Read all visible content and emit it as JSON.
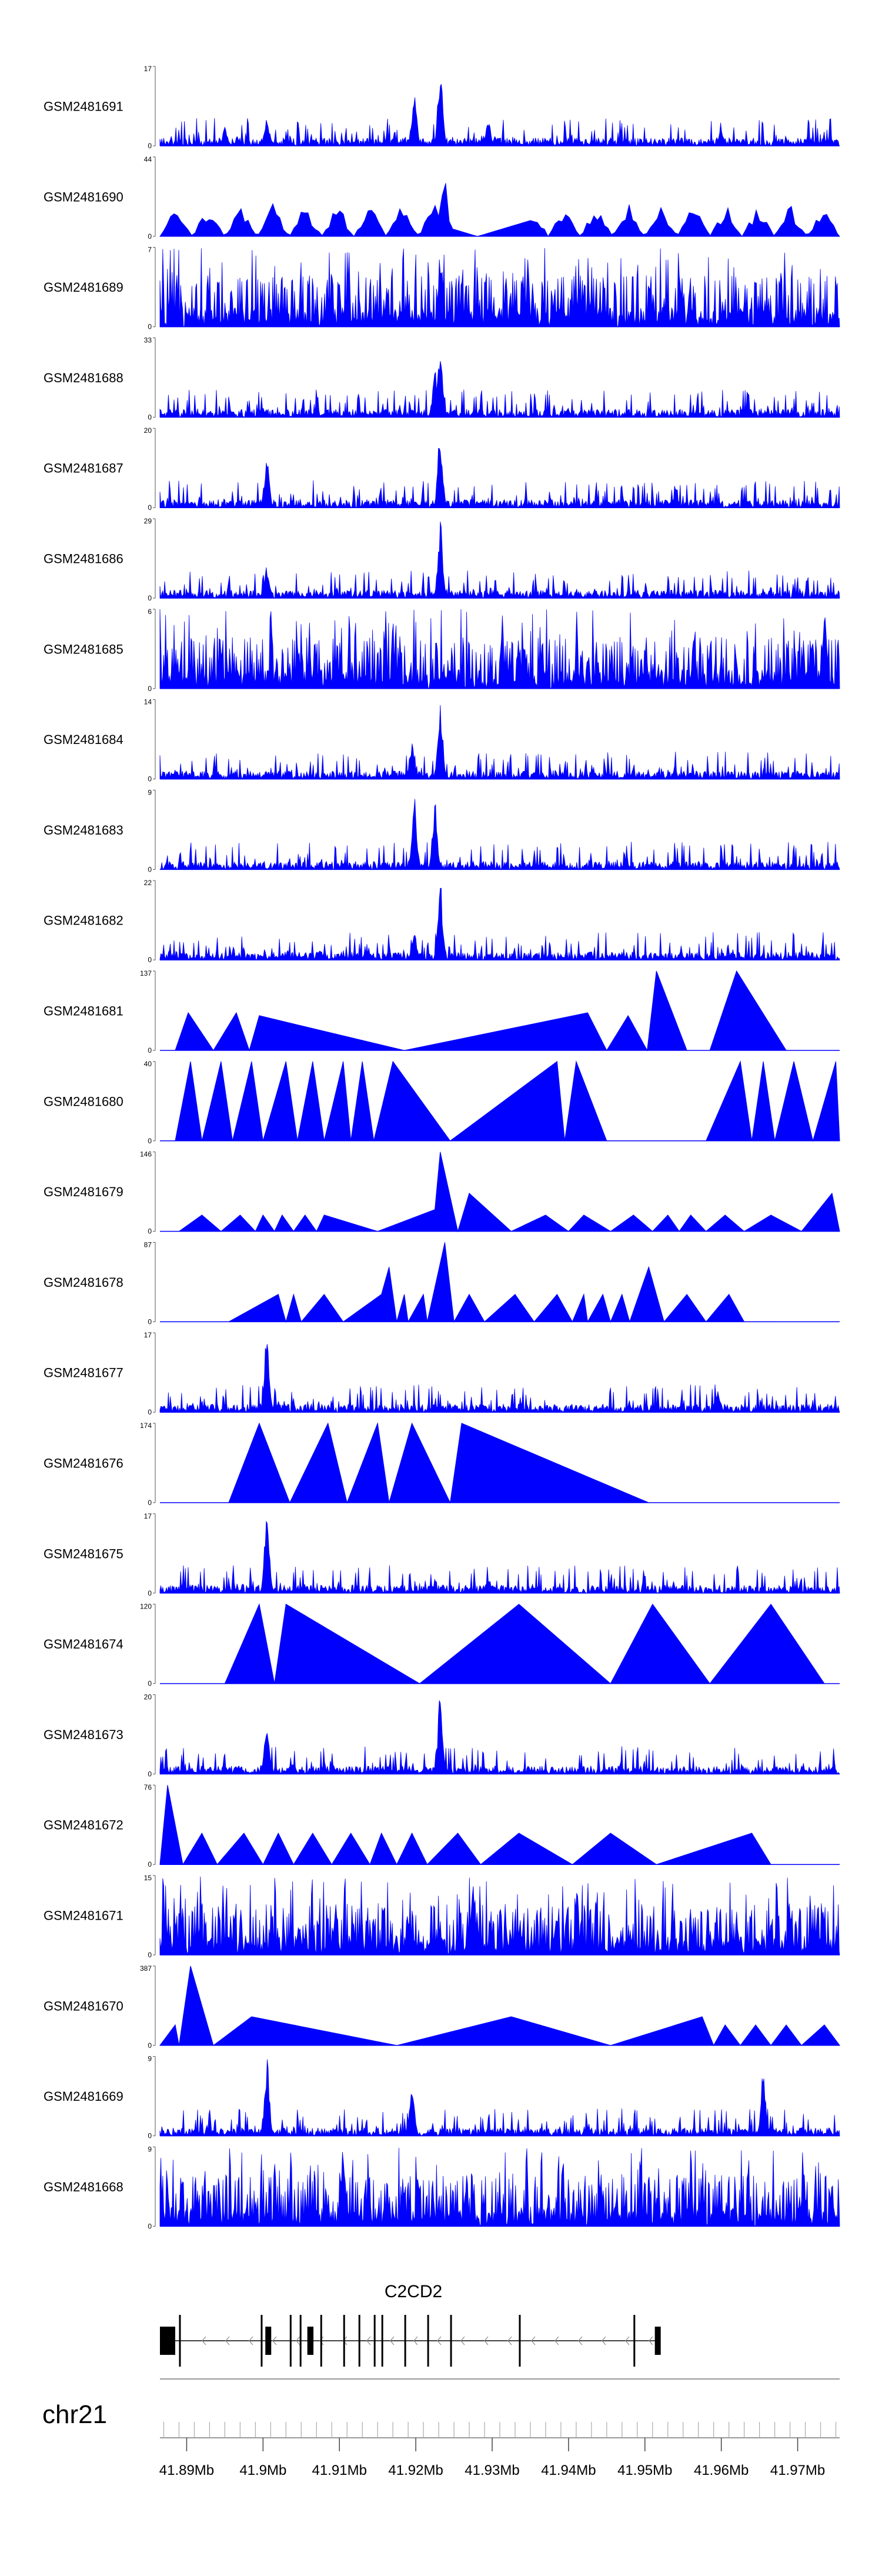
{
  "chart_data": {
    "type": "area",
    "chromosome": "chr21",
    "region_mb": [
      41.8865,
      41.9755
    ],
    "fill_color": "#0000ff",
    "gene": {
      "name": "C2CD2",
      "strand": "-"
    },
    "axis_ticks": [
      "41.89Mb",
      "41.9Mb",
      "41.91Mb",
      "41.92Mb",
      "41.93Mb",
      "41.94Mb",
      "41.95Mb",
      "41.96Mb",
      "41.97Mb"
    ],
    "axis_tick_values": [
      41.89,
      41.9,
      41.91,
      41.92,
      41.93,
      41.94,
      41.95,
      41.96,
      41.97
    ],
    "tracks": [
      {
        "label": "GSM2481691",
        "ymax": 17,
        "ymin": 0,
        "style": "dense",
        "peaks": [
          [
            41.9005,
            6
          ],
          [
            41.9198,
            12
          ],
          [
            41.9232,
            17
          ],
          [
            41.9295,
            6
          ],
          [
            41.895,
            4
          ],
          [
            41.96,
            4
          ]
        ]
      },
      {
        "label": "GSM2481690",
        "ymax": 44,
        "ymin": 0,
        "style": "sparse-triangles",
        "peaks": [
          [
            41.9215,
            15
          ],
          [
            41.9238,
            44
          ],
          [
            41.9105,
            20
          ]
        ]
      },
      {
        "label": "GSM2481689",
        "ymax": 7,
        "ymin": 0,
        "style": "dense-noisy",
        "peaks": [
          [
            41.9232,
            7
          ]
        ]
      },
      {
        "label": "GSM2481688",
        "ymax": 33,
        "ymin": 0,
        "style": "dense",
        "peaks": [
          [
            41.9232,
            33
          ],
          [
            41.9225,
            20
          ],
          [
            41.9,
            4
          ]
        ]
      },
      {
        "label": "GSM2481687",
        "ymax": 20,
        "ymin": 0,
        "style": "dense",
        "peaks": [
          [
            41.9232,
            20
          ],
          [
            41.9005,
            14
          ]
        ]
      },
      {
        "label": "GSM2481686",
        "ymax": 29,
        "ymin": 0,
        "style": "dense",
        "peaks": [
          [
            41.9232,
            29
          ],
          [
            41.9005,
            12
          ]
        ]
      },
      {
        "label": "GSM2481685",
        "ymax": 6,
        "ymin": 0,
        "style": "dense-noisy",
        "peaks": [
          [
            41.9735,
            6
          ]
        ]
      },
      {
        "label": "GSM2481684",
        "ymax": 14,
        "ymin": 0,
        "style": "dense",
        "peaks": [
          [
            41.9232,
            14
          ],
          [
            41.9195,
            7
          ]
        ]
      },
      {
        "label": "GSM2481683",
        "ymax": 9,
        "ymin": 0,
        "style": "dense",
        "peaks": [
          [
            41.9198,
            9
          ],
          [
            41.9225,
            8
          ]
        ]
      },
      {
        "label": "GSM2481682",
        "ymax": 22,
        "ymin": 0,
        "style": "dense",
        "peaks": [
          [
            41.9232,
            22
          ],
          [
            41.9198,
            8
          ]
        ]
      },
      {
        "label": "GSM2481681",
        "ymax": 137,
        "ymin": 0,
        "style": "big-triangles",
        "points": [
          [
            41.8885,
            0
          ],
          [
            41.8902,
            65
          ],
          [
            41.8935,
            0
          ],
          [
            41.8965,
            65
          ],
          [
            41.8982,
            0
          ],
          [
            41.8995,
            60
          ],
          [
            41.9185,
            0
          ],
          [
            41.9425,
            65
          ],
          [
            41.945,
            0
          ],
          [
            41.9478,
            60
          ],
          [
            41.9503,
            0
          ],
          [
            41.9515,
            137
          ],
          [
            41.9555,
            0
          ],
          [
            41.9585,
            0
          ],
          [
            41.962,
            137
          ],
          [
            41.9685,
            0
          ]
        ]
      },
      {
        "label": "GSM2481680",
        "ymax": 40,
        "ymin": 0,
        "style": "big-triangles",
        "points": [
          [
            41.8885,
            0
          ],
          [
            41.8905,
            40
          ],
          [
            41.892,
            0
          ],
          [
            41.8945,
            40
          ],
          [
            41.896,
            0
          ],
          [
            41.8985,
            40
          ],
          [
            41.9,
            0
          ],
          [
            41.903,
            40
          ],
          [
            41.9045,
            0
          ],
          [
            41.9065,
            40
          ],
          [
            41.908,
            0
          ],
          [
            41.9105,
            40
          ],
          [
            41.9115,
            0
          ],
          [
            41.913,
            40
          ],
          [
            41.9145,
            0
          ],
          [
            41.917,
            40
          ],
          [
            41.9245,
            0
          ],
          [
            41.9385,
            40
          ],
          [
            41.9395,
            0
          ],
          [
            41.941,
            40
          ],
          [
            41.945,
            0
          ],
          [
            41.958,
            0
          ],
          [
            41.9625,
            40
          ],
          [
            41.964,
            0
          ],
          [
            41.9655,
            40
          ],
          [
            41.967,
            0
          ],
          [
            41.9695,
            40
          ],
          [
            41.972,
            0
          ],
          [
            41.975,
            40
          ],
          [
            41.9755,
            0
          ]
        ]
      },
      {
        "label": "GSM2481679",
        "ymax": 146,
        "ymin": 0,
        "style": "big-triangles",
        "points": [
          [
            41.889,
            0
          ],
          [
            41.892,
            30
          ],
          [
            41.8945,
            0
          ],
          [
            41.897,
            30
          ],
          [
            41.899,
            0
          ],
          [
            41.9,
            30
          ],
          [
            41.9015,
            0
          ],
          [
            41.9025,
            30
          ],
          [
            41.904,
            0
          ],
          [
            41.9055,
            30
          ],
          [
            41.907,
            0
          ],
          [
            41.908,
            30
          ],
          [
            41.915,
            0
          ],
          [
            41.9225,
            40
          ],
          [
            41.9232,
            146
          ],
          [
            41.9255,
            0
          ],
          [
            41.927,
            70
          ],
          [
            41.9325,
            0
          ],
          [
            41.937,
            30
          ],
          [
            41.94,
            0
          ],
          [
            41.942,
            30
          ],
          [
            41.9455,
            0
          ],
          [
            41.9485,
            30
          ],
          [
            41.951,
            0
          ],
          [
            41.953,
            30
          ],
          [
            41.9545,
            0
          ],
          [
            41.956,
            30
          ],
          [
            41.958,
            0
          ],
          [
            41.9605,
            30
          ],
          [
            41.963,
            0
          ],
          [
            41.9665,
            30
          ],
          [
            41.9705,
            0
          ],
          [
            41.9745,
            70
          ],
          [
            41.9755,
            0
          ]
        ]
      },
      {
        "label": "GSM2481678",
        "ymax": 87,
        "ymin": 0,
        "style": "big-triangles",
        "points": [
          [
            41.8955,
            0
          ],
          [
            41.902,
            30
          ],
          [
            41.903,
            0
          ],
          [
            41.904,
            30
          ],
          [
            41.905,
            0
          ],
          [
            41.908,
            30
          ],
          [
            41.9105,
            0
          ],
          [
            41.9155,
            30
          ],
          [
            41.9165,
            60
          ],
          [
            41.9175,
            0
          ],
          [
            41.9185,
            30
          ],
          [
            41.919,
            0
          ],
          [
            41.921,
            30
          ],
          [
            41.9215,
            0
          ],
          [
            41.9238,
            87
          ],
          [
            41.925,
            0
          ],
          [
            41.927,
            30
          ],
          [
            41.929,
            0
          ],
          [
            41.933,
            30
          ],
          [
            41.9355,
            0
          ],
          [
            41.9385,
            30
          ],
          [
            41.9405,
            0
          ],
          [
            41.942,
            30
          ],
          [
            41.9425,
            0
          ],
          [
            41.9445,
            30
          ],
          [
            41.9455,
            0
          ],
          [
            41.947,
            30
          ],
          [
            41.948,
            0
          ],
          [
            41.9505,
            60
          ],
          [
            41.9525,
            0
          ],
          [
            41.9555,
            30
          ],
          [
            41.958,
            0
          ],
          [
            41.961,
            30
          ],
          [
            41.963,
            0
          ],
          [
            41.9675,
            0
          ]
        ]
      },
      {
        "label": "GSM2481677",
        "ymax": 17,
        "ymin": 0,
        "style": "dense",
        "peaks": [
          [
            41.9005,
            17
          ],
          [
            41.9595,
            5
          ]
        ]
      },
      {
        "label": "GSM2481676",
        "ymax": 174,
        "ymin": 0,
        "style": "big-triangles",
        "points": [
          [
            41.8955,
            0
          ],
          [
            41.8995,
            174
          ],
          [
            41.9035,
            0
          ],
          [
            41.9085,
            174
          ],
          [
            41.911,
            0
          ],
          [
            41.915,
            174
          ],
          [
            41.9165,
            0
          ],
          [
            41.9195,
            174
          ],
          [
            41.9245,
            0
          ],
          [
            41.926,
            174
          ],
          [
            41.9505,
            0
          ]
        ]
      },
      {
        "label": "GSM2481675",
        "ymax": 17,
        "ymin": 0,
        "style": "dense",
        "peaks": [
          [
            41.9005,
            17
          ],
          [
            41.9295,
            4
          ]
        ]
      },
      {
        "label": "GSM2481674",
        "ymax": 120,
        "ymin": 0,
        "style": "big-triangles",
        "points": [
          [
            41.895,
            0
          ],
          [
            41.8995,
            120
          ],
          [
            41.9015,
            0
          ],
          [
            41.903,
            120
          ],
          [
            41.9205,
            0
          ],
          [
            41.9335,
            120
          ],
          [
            41.9455,
            0
          ],
          [
            41.951,
            120
          ],
          [
            41.9585,
            0
          ],
          [
            41.9665,
            120
          ],
          [
            41.9735,
            0
          ]
        ]
      },
      {
        "label": "GSM2481673",
        "ymax": 20,
        "ymin": 0,
        "style": "dense",
        "peaks": [
          [
            41.9232,
            20
          ],
          [
            41.9005,
            13
          ]
        ]
      },
      {
        "label": "GSM2481672",
        "ymax": 76,
        "ymin": 0,
        "style": "big-triangles",
        "points": [
          [
            41.8865,
            0
          ],
          [
            41.8875,
            76
          ],
          [
            41.8895,
            0
          ],
          [
            41.892,
            30
          ],
          [
            41.894,
            0
          ],
          [
            41.8975,
            30
          ],
          [
            41.9,
            0
          ],
          [
            41.902,
            30
          ],
          [
            41.904,
            0
          ],
          [
            41.9065,
            30
          ],
          [
            41.909,
            0
          ],
          [
            41.9115,
            30
          ],
          [
            41.914,
            0
          ],
          [
            41.9155,
            30
          ],
          [
            41.9175,
            0
          ],
          [
            41.9195,
            30
          ],
          [
            41.9215,
            0
          ],
          [
            41.9255,
            30
          ],
          [
            41.9285,
            0
          ],
          [
            41.9335,
            30
          ],
          [
            41.9405,
            0
          ],
          [
            41.9455,
            30
          ],
          [
            41.9515,
            0
          ],
          [
            41.964,
            30
          ],
          [
            41.9665,
            0
          ]
        ]
      },
      {
        "label": "GSM2481671",
        "ymax": 15,
        "ymin": 0,
        "style": "dense-noisy",
        "peaks": [
          [
            41.9275,
            15
          ],
          [
            41.9095,
            8
          ]
        ]
      },
      {
        "label": "GSM2481670",
        "ymax": 387,
        "ymin": 0,
        "style": "big-triangles",
        "points": [
          [
            41.8865,
            0
          ],
          [
            41.8885,
            100
          ],
          [
            41.889,
            0
          ],
          [
            41.8905,
            387
          ],
          [
            41.8935,
            0
          ],
          [
            41.8985,
            140
          ],
          [
            41.9175,
            0
          ],
          [
            41.9325,
            140
          ],
          [
            41.9455,
            0
          ],
          [
            41.9575,
            140
          ],
          [
            41.959,
            0
          ],
          [
            41.9605,
            100
          ],
          [
            41.9625,
            0
          ],
          [
            41.9645,
            100
          ],
          [
            41.9665,
            0
          ],
          [
            41.9685,
            100
          ],
          [
            41.9705,
            0
          ],
          [
            41.9735,
            100
          ],
          [
            41.9755,
            0
          ]
        ]
      },
      {
        "label": "GSM2481669",
        "ymax": 9,
        "ymin": 0,
        "style": "dense",
        "peaks": [
          [
            41.9005,
            9
          ],
          [
            41.9195,
            7
          ],
          [
            41.9655,
            8
          ]
        ]
      },
      {
        "label": "GSM2481668",
        "ymax": 9,
        "ymin": 0,
        "style": "dense-noisy",
        "peaks": [
          [
            41.9105,
            9
          ]
        ]
      }
    ],
    "exons": [
      [
        41.8865,
        41.8885,
        "thick"
      ],
      [
        41.889,
        41.8895,
        "thin"
      ],
      [
        41.8997,
        41.9002,
        "thin"
      ],
      [
        41.9003,
        41.9008,
        "thick"
      ],
      [
        41.9035,
        41.9038,
        "thin"
      ],
      [
        41.9048,
        41.9051,
        "thin"
      ],
      [
        41.9058,
        41.9066,
        "thick"
      ],
      [
        41.9075,
        41.9078,
        "thin"
      ],
      [
        41.9105,
        41.9108,
        "thin"
      ],
      [
        41.9125,
        41.9128,
        "thin"
      ],
      [
        41.9145,
        41.9148,
        "thin"
      ],
      [
        41.9155,
        41.9158,
        "thin"
      ],
      [
        41.9185,
        41.9188,
        "thin"
      ],
      [
        41.9215,
        41.9218,
        "thin"
      ],
      [
        41.9245,
        41.9248,
        "thin"
      ],
      [
        41.9335,
        41.9338,
        "thin"
      ],
      [
        41.9485,
        41.9488,
        "thin"
      ],
      [
        41.9513,
        41.9518,
        "thick"
      ]
    ]
  }
}
